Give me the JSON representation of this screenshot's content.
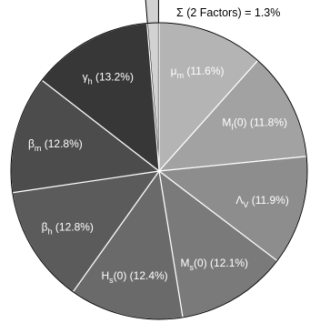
{
  "chart_data": {
    "type": "pie",
    "title": "",
    "start_direction": "top",
    "direction": "clockwise",
    "slices": [
      {
        "sym": "μ",
        "sub": "m",
        "suffix": "",
        "pct_text": " (11.6%)",
        "value": 11.6,
        "color": "#b4b4b4"
      },
      {
        "sym": "M",
        "sub": "I",
        "suffix": "(0)",
        "pct_text": " (11.8%)",
        "value": 11.8,
        "color": "#a2a2a2"
      },
      {
        "sym": "Λ",
        "sub": "V",
        "suffix": "",
        "pct_text": " (11.9%)",
        "value": 11.9,
        "color": "#8d8d8d"
      },
      {
        "sym": "M",
        "sub": "s",
        "suffix": "(0)",
        "pct_text": " (12.1%)",
        "value": 12.1,
        "color": "#7a7a7a"
      },
      {
        "sym": "H",
        "sub": "s",
        "suffix": "(0)",
        "pct_text": " (12.4%)",
        "value": 12.4,
        "color": "#6a6a6a"
      },
      {
        "sym": "β",
        "sub": "h",
        "suffix": "",
        "pct_text": " (12.8%)",
        "value": 12.8,
        "color": "#5b5b5b"
      },
      {
        "sym": "β",
        "sub": "m",
        "suffix": "",
        "pct_text": " (12.8%)",
        "value": 12.8,
        "color": "#4c4c4c"
      },
      {
        "sym": "γ",
        "sub": "h",
        "suffix": "",
        "pct_text": " (13.2%)",
        "value": 13.2,
        "color": "#373737"
      }
    ],
    "exploded_slice": {
      "label": "Σ (2 Factors) = 1.3%",
      "value": 1.3,
      "color": "#d2d2d2"
    }
  }
}
